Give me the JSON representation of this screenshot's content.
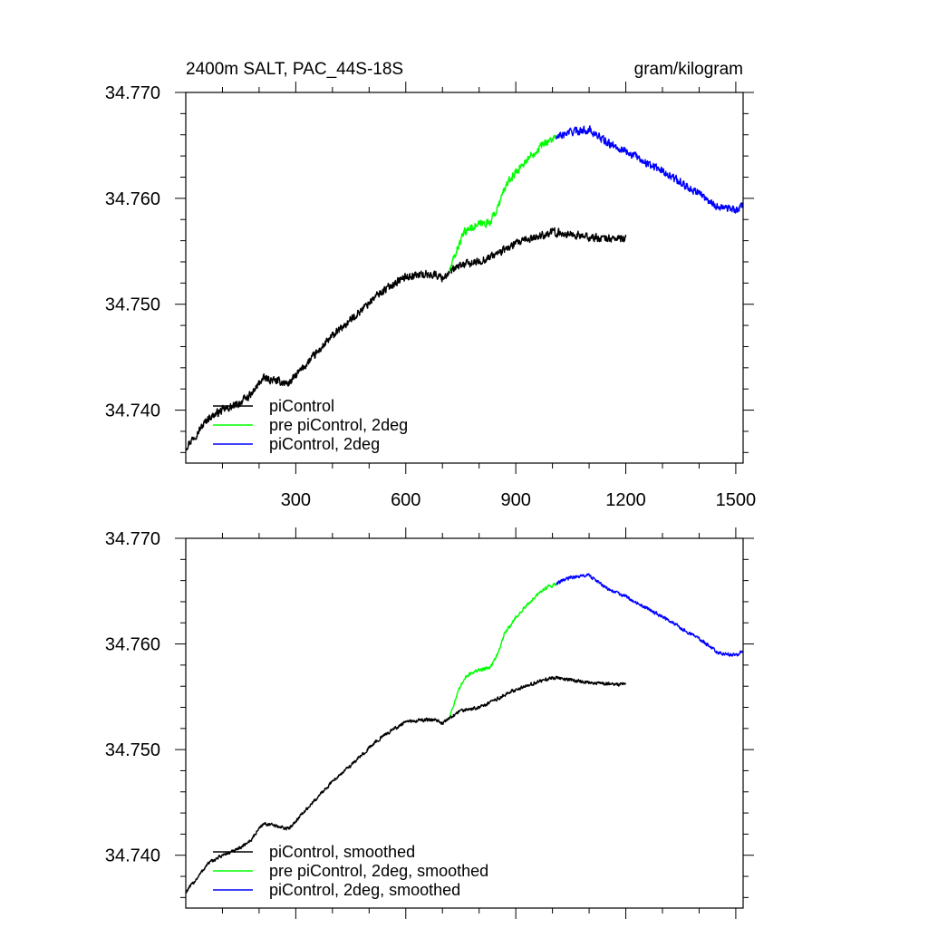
{
  "chart_data": [
    {
      "type": "line",
      "title": "2400m SALT, PAC_44S-18S",
      "units": "gram/kilogram",
      "xlabel": "",
      "ylabel": "",
      "xlim": [
        0,
        1520
      ],
      "ylim": [
        34.735,
        34.77
      ],
      "xticks": [
        300,
        600,
        900,
        1200,
        1500
      ],
      "xtick_labels": [
        "300",
        "600",
        "900",
        "1200",
        "1500"
      ],
      "yticks": [
        34.74,
        34.75,
        34.76,
        34.77
      ],
      "ytick_labels": [
        "34.740",
        "34.750",
        "34.760",
        "34.770"
      ],
      "legend_position": "bottom-left",
      "series": [
        {
          "name": "piControl",
          "color": "#000000",
          "noise": 0.0005,
          "x": [
            0,
            30,
            60,
            100,
            140,
            180,
            205,
            215,
            240,
            280,
            320,
            360,
            400,
            440,
            480,
            520,
            560,
            600,
            640,
            680,
            700,
            720,
            750,
            800,
            850,
            900,
            950,
            1000,
            1050,
            1100,
            1150,
            1200
          ],
          "y": [
            34.7365,
            34.7378,
            34.7392,
            34.74,
            34.7405,
            34.7415,
            34.7428,
            34.743,
            34.7428,
            34.7425,
            34.744,
            34.7455,
            34.747,
            34.7482,
            34.7495,
            34.7508,
            34.7518,
            34.7526,
            34.7528,
            34.7528,
            34.7525,
            34.753,
            34.7537,
            34.754,
            34.7548,
            34.7557,
            34.7563,
            34.7568,
            34.7566,
            34.7563,
            34.7562,
            34.7562
          ]
        },
        {
          "name": "pre piControl, 2deg",
          "color": "#00ff00",
          "noise": 0.0005,
          "x": [
            720,
            740,
            760,
            780,
            800,
            830,
            850,
            870,
            900,
            940,
            980,
            1010
          ],
          "y": [
            34.7532,
            34.7552,
            34.7568,
            34.7573,
            34.7575,
            34.7578,
            34.759,
            34.761,
            34.7625,
            34.764,
            34.7653,
            34.7657
          ]
        },
        {
          "name": "piControl, 2deg",
          "color": "#0000ff",
          "noise": 0.0005,
          "x": [
            1010,
            1050,
            1100,
            1150,
            1200,
            1250,
            1300,
            1350,
            1400,
            1450,
            1500,
            1520
          ],
          "y": [
            34.7657,
            34.7663,
            34.7665,
            34.7652,
            34.7645,
            34.7635,
            34.7626,
            34.7615,
            34.7605,
            34.7592,
            34.7589,
            34.7593
          ]
        }
      ]
    },
    {
      "type": "line",
      "title": "",
      "xlabel": "",
      "ylabel": "",
      "xlim": [
        0,
        1520
      ],
      "ylim": [
        34.735,
        34.77
      ],
      "xticks": [
        300,
        600,
        900,
        1200,
        1500
      ],
      "xtick_labels": [],
      "yticks": [
        34.74,
        34.75,
        34.76,
        34.77
      ],
      "ytick_labels": [
        "34.740",
        "34.750",
        "34.760",
        "34.770"
      ],
      "legend_position": "bottom-left",
      "series": [
        {
          "name": "piControl, smoothed",
          "color": "#000000",
          "noise": 0.00022,
          "x": [
            0,
            30,
            60,
            100,
            140,
            180,
            205,
            215,
            240,
            280,
            320,
            360,
            400,
            440,
            480,
            520,
            560,
            600,
            640,
            680,
            700,
            720,
            750,
            800,
            850,
            900,
            950,
            1000,
            1050,
            1100,
            1150,
            1200
          ],
          "y": [
            34.7365,
            34.7378,
            34.7392,
            34.74,
            34.7405,
            34.7415,
            34.7428,
            34.743,
            34.7428,
            34.7425,
            34.744,
            34.7455,
            34.747,
            34.7482,
            34.7495,
            34.7508,
            34.7518,
            34.7526,
            34.7528,
            34.7528,
            34.7525,
            34.753,
            34.7537,
            34.754,
            34.7548,
            34.7557,
            34.7563,
            34.7568,
            34.7566,
            34.7563,
            34.7562,
            34.7562
          ]
        },
        {
          "name": "pre piControl, 2deg, smoothed",
          "color": "#00ff00",
          "noise": 0.00022,
          "x": [
            720,
            740,
            760,
            780,
            800,
            830,
            850,
            870,
            900,
            940,
            980,
            1010
          ],
          "y": [
            34.7532,
            34.7552,
            34.7568,
            34.7573,
            34.7575,
            34.7578,
            34.759,
            34.761,
            34.7625,
            34.764,
            34.7653,
            34.7657
          ]
        },
        {
          "name": "piControl, 2deg, smoothed",
          "color": "#0000ff",
          "noise": 0.00022,
          "x": [
            1010,
            1050,
            1100,
            1150,
            1200,
            1250,
            1300,
            1350,
            1400,
            1450,
            1500,
            1520
          ],
          "y": [
            34.7657,
            34.7663,
            34.7665,
            34.7652,
            34.7645,
            34.7635,
            34.7626,
            34.7615,
            34.7605,
            34.7592,
            34.7589,
            34.7593
          ]
        }
      ]
    }
  ]
}
